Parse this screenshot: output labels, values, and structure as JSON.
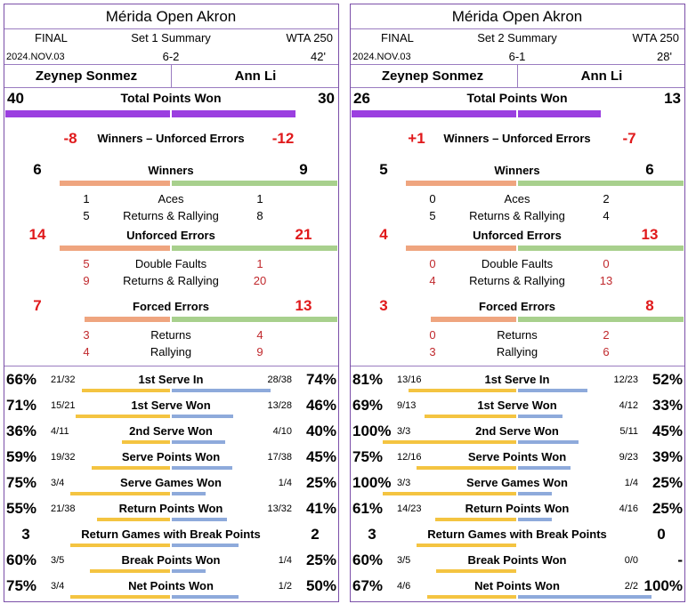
{
  "colors": {
    "purple": "#9b3fe0",
    "orange": "#efa57f",
    "green": "#a8d08d",
    "yellow": "#f4c441",
    "blue": "#8eaadb",
    "red": "#e0191b",
    "border": "#7b4fa8"
  },
  "panels": [
    {
      "tournament": "Mérida Open Akron",
      "status": "FINAL",
      "set_title": "Set 1 Summary",
      "tour": "WTA 250",
      "date": "2024.NOV.03",
      "score": "6-2",
      "duration": "42'",
      "player1": "Zeynep Sonmez",
      "player2": "Ann Li",
      "total_points": {
        "label": "Total Points Won",
        "p1": "40",
        "p2": "30",
        "p1_value": 40,
        "p2_value": 30
      },
      "wue": {
        "label": "Winners – Unforced Errors",
        "p1": "-8",
        "p2": "-12"
      },
      "winners": {
        "label": "Winners",
        "p1": "6",
        "p2": "9",
        "p1_value": 6,
        "p2_value": 9,
        "rows": [
          {
            "label": "Aces",
            "p1": "1",
            "p2": "1"
          },
          {
            "label": "Returns & Rallying",
            "p1": "5",
            "p2": "8"
          }
        ]
      },
      "unforced": {
        "label": "Unforced Errors",
        "p1": "14",
        "p2": "21",
        "p1_value": 14,
        "p2_value": 21,
        "rows": [
          {
            "label": "Double Faults",
            "p1": "5",
            "p2": "1"
          },
          {
            "label": "Returns & Rallying",
            "p1": "9",
            "p2": "20"
          }
        ]
      },
      "forced": {
        "label": "Forced Errors",
        "p1": "7",
        "p2": "13",
        "p1_value": 7,
        "p2_value": 13,
        "rows": [
          {
            "label": "Returns",
            "p1": "3",
            "p2": "4"
          },
          {
            "label": "Rallying",
            "p1": "4",
            "p2": "9"
          }
        ]
      },
      "stats": [
        {
          "label": "1st Serve In",
          "p1_pct": "66%",
          "p1_frac": "21/32",
          "p2_frac": "28/38",
          "p2_pct": "74%",
          "p1_value": 66,
          "p2_value": 74
        },
        {
          "label": "1st Serve Won",
          "p1_pct": "71%",
          "p1_frac": "15/21",
          "p2_frac": "13/28",
          "p2_pct": "46%",
          "p1_value": 71,
          "p2_value": 46
        },
        {
          "label": "2nd Serve Won",
          "p1_pct": "36%",
          "p1_frac": "4/11",
          "p2_frac": "4/10",
          "p2_pct": "40%",
          "p1_value": 36,
          "p2_value": 40
        },
        {
          "label": "Serve Points Won",
          "p1_pct": "59%",
          "p1_frac": "19/32",
          "p2_frac": "17/38",
          "p2_pct": "45%",
          "p1_value": 59,
          "p2_value": 45
        },
        {
          "label": "Serve Games Won",
          "p1_pct": "75%",
          "p1_frac": "3/4",
          "p2_frac": "1/4",
          "p2_pct": "25%",
          "p1_value": 75,
          "p2_value": 25
        },
        {
          "label": "Return Points Won",
          "p1_pct": "55%",
          "p1_frac": "21/38",
          "p2_frac": "13/32",
          "p2_pct": "41%",
          "p1_value": 55,
          "p2_value": 41
        },
        {
          "label": "Return Games with Break Points",
          "p1_pct": "3",
          "p1_frac": "",
          "p2_frac": "",
          "p2_pct": "2",
          "p1_value": 75,
          "p2_value": 50
        },
        {
          "label": "Break Points Won",
          "p1_pct": "60%",
          "p1_frac": "3/5",
          "p2_frac": "1/4",
          "p2_pct": "25%",
          "p1_value": 60,
          "p2_value": 25
        },
        {
          "label": "Net Points Won",
          "p1_pct": "75%",
          "p1_frac": "3/4",
          "p2_frac": "1/2",
          "p2_pct": "50%",
          "p1_value": 75,
          "p2_value": 50
        }
      ]
    },
    {
      "tournament": "Mérida Open Akron",
      "status": "FINAL",
      "set_title": "Set 2 Summary",
      "tour": "WTA 250",
      "date": "2024.NOV.03",
      "score": "6-1",
      "duration": "28'",
      "player1": "Zeynep Sonmez",
      "player2": "Ann Li",
      "total_points": {
        "label": "Total Points Won",
        "p1": "26",
        "p2": "13",
        "p1_value": 26,
        "p2_value": 13
      },
      "wue": {
        "label": "Winners – Unforced Errors",
        "p1": "+1",
        "p2": "-7"
      },
      "winners": {
        "label": "Winners",
        "p1": "5",
        "p2": "6",
        "p1_value": 5,
        "p2_value": 6,
        "rows": [
          {
            "label": "Aces",
            "p1": "0",
            "p2": "2"
          },
          {
            "label": "Returns & Rallying",
            "p1": "5",
            "p2": "4"
          }
        ]
      },
      "unforced": {
        "label": "Unforced Errors",
        "p1": "4",
        "p2": "13",
        "p1_value": 4,
        "p2_value": 13,
        "rows": [
          {
            "label": "Double Faults",
            "p1": "0",
            "p2": "0"
          },
          {
            "label": "Returns & Rallying",
            "p1": "4",
            "p2": "13"
          }
        ]
      },
      "forced": {
        "label": "Forced Errors",
        "p1": "3",
        "p2": "8",
        "p1_value": 3,
        "p2_value": 8,
        "rows": [
          {
            "label": "Returns",
            "p1": "0",
            "p2": "2"
          },
          {
            "label": "Rallying",
            "p1": "3",
            "p2": "6"
          }
        ]
      },
      "stats": [
        {
          "label": "1st Serve In",
          "p1_pct": "81%",
          "p1_frac": "13/16",
          "p2_frac": "12/23",
          "p2_pct": "52%",
          "p1_value": 81,
          "p2_value": 52
        },
        {
          "label": "1st Serve Won",
          "p1_pct": "69%",
          "p1_frac": "9/13",
          "p2_frac": "4/12",
          "p2_pct": "33%",
          "p1_value": 69,
          "p2_value": 33
        },
        {
          "label": "2nd Serve Won",
          "p1_pct": "100%",
          "p1_frac": "3/3",
          "p2_frac": "5/11",
          "p2_pct": "45%",
          "p1_value": 100,
          "p2_value": 45
        },
        {
          "label": "Serve Points Won",
          "p1_pct": "75%",
          "p1_frac": "12/16",
          "p2_frac": "9/23",
          "p2_pct": "39%",
          "p1_value": 75,
          "p2_value": 39
        },
        {
          "label": "Serve Games Won",
          "p1_pct": "100%",
          "p1_frac": "3/3",
          "p2_frac": "1/4",
          "p2_pct": "25%",
          "p1_value": 100,
          "p2_value": 25
        },
        {
          "label": "Return Points Won",
          "p1_pct": "61%",
          "p1_frac": "14/23",
          "p2_frac": "4/16",
          "p2_pct": "25%",
          "p1_value": 61,
          "p2_value": 25
        },
        {
          "label": "Return Games with Break Points",
          "p1_pct": "3",
          "p1_frac": "",
          "p2_frac": "",
          "p2_pct": "0",
          "p1_value": 75,
          "p2_value": 0
        },
        {
          "label": "Break Points Won",
          "p1_pct": "60%",
          "p1_frac": "3/5",
          "p2_frac": "0/0",
          "p2_pct": "-",
          "p1_value": 60,
          "p2_value": 0
        },
        {
          "label": "Net Points Won",
          "p1_pct": "67%",
          "p1_frac": "4/6",
          "p2_frac": "2/2",
          "p2_pct": "100%",
          "p1_value": 67,
          "p2_value": 100
        }
      ]
    }
  ]
}
